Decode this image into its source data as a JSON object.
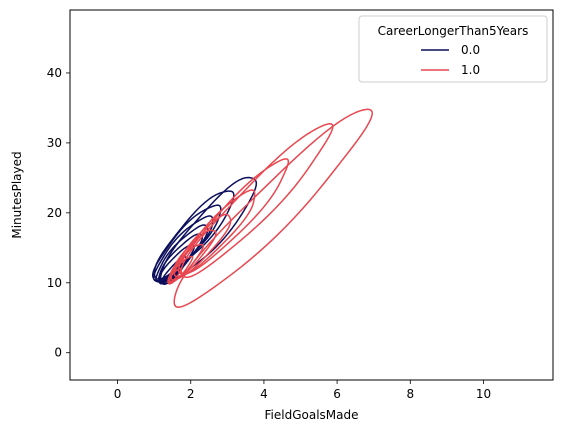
{
  "chart_data": {
    "type": "kde-contour",
    "title": "",
    "xlabel": "FieldGoalsMade",
    "ylabel": "MinutesPlayed",
    "xlim": [
      -1.3,
      11.9
    ],
    "ylim": [
      -3.9,
      49.0
    ],
    "xticks": [
      0,
      2,
      4,
      6,
      8,
      10
    ],
    "yticks": [
      0,
      10,
      20,
      30,
      40
    ],
    "grid": false,
    "legend": {
      "title": "CareerLongerThan5Years",
      "placement": "top-right"
    },
    "series": [
      {
        "name": "0.0",
        "color": "#0c0f5c",
        "levels": [
          {
            "cx": 1.6,
            "cy": 11.6,
            "major": 1.05,
            "minor": 0.28,
            "k": 5.6
          },
          {
            "cx": 1.55,
            "cy": 11.7,
            "major": 1.9,
            "minor": 0.5,
            "k": 5.8
          },
          {
            "cx": 1.6,
            "cy": 12.6,
            "major": 2.7,
            "minor": 0.68,
            "k": 5.8
          },
          {
            "cx": 1.7,
            "cy": 13.5,
            "major": 3.4,
            "minor": 0.85,
            "k": 5.8
          },
          {
            "cx": 1.75,
            "cy": 14.2,
            "major": 4.0,
            "minor": 1.0,
            "k": 5.8
          },
          {
            "cx": 1.8,
            "cy": 14.9,
            "major": 4.6,
            "minor": 1.15,
            "k": 5.8
          },
          {
            "cx": 1.9,
            "cy": 15.8,
            "major": 5.3,
            "minor": 1.3,
            "k": 5.8
          },
          {
            "cx": 2.1,
            "cy": 17.0,
            "major": 6.2,
            "minor": 1.48,
            "k": 5.8
          },
          {
            "cx": 2.5,
            "cy": 17.6,
            "major": 7.5,
            "minor": 1.68,
            "k": 5.8
          }
        ]
      },
      {
        "name": "1.0",
        "color": "#e8474f",
        "levels": [
          {
            "cx": 1.55,
            "cy": 11.0,
            "major": 1.0,
            "minor": 0.25,
            "k": 5.8
          },
          {
            "cx": 1.7,
            "cy": 11.8,
            "major": 1.9,
            "minor": 0.45,
            "k": 5.8
          },
          {
            "cx": 1.85,
            "cy": 12.8,
            "major": 2.7,
            "minor": 0.65,
            "k": 5.9
          },
          {
            "cx": 2.05,
            "cy": 14.0,
            "major": 3.6,
            "minor": 0.85,
            "k": 5.9
          },
          {
            "cx": 2.3,
            "cy": 15.2,
            "major": 4.6,
            "minor": 1.05,
            "k": 5.8
          },
          {
            "cx": 2.7,
            "cy": 17.1,
            "major": 6.1,
            "minor": 1.25,
            "k": 5.6
          },
          {
            "cx": 3.2,
            "cy": 19.4,
            "major": 8.2,
            "minor": 1.45,
            "k": 5.5
          },
          {
            "cx": 3.8,
            "cy": 21.6,
            "major": 11.0,
            "minor": 1.7,
            "k": 5.3
          },
          {
            "cx": 4.2,
            "cy": 20.5,
            "major": 14.2,
            "minor": 2.1,
            "k": 5.2
          }
        ]
      }
    ]
  }
}
